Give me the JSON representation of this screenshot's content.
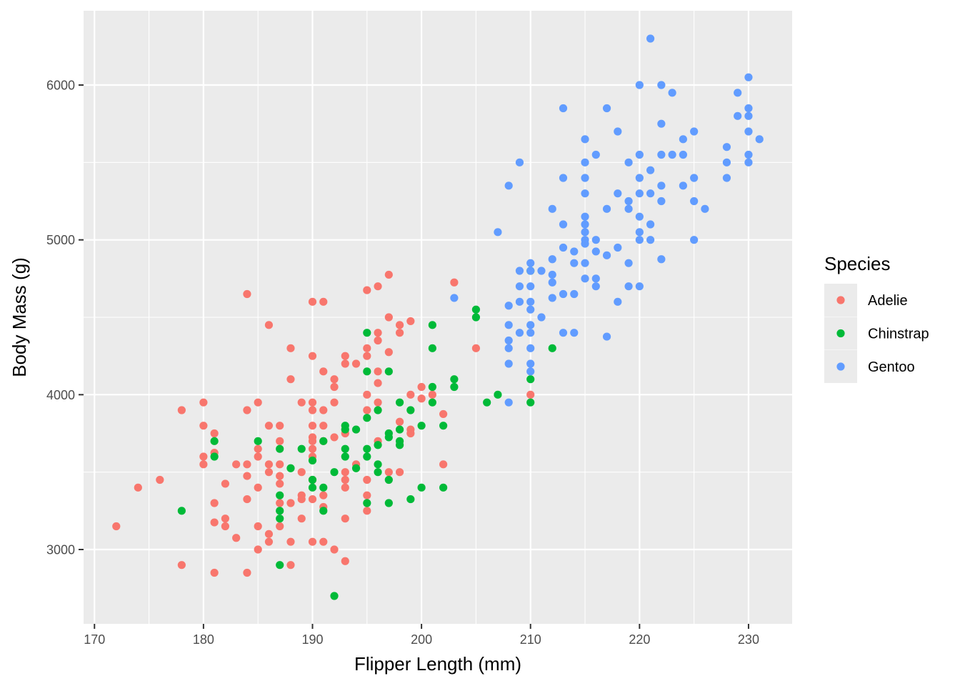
{
  "chart_data": {
    "type": "scatter",
    "title": "",
    "xlabel": "Flipper Length (mm)",
    "ylabel": "Body Mass (g)",
    "xlim": [
      169,
      234
    ],
    "ylim": [
      2520,
      6480
    ],
    "x_ticks": [
      170,
      180,
      190,
      200,
      210,
      220,
      230
    ],
    "y_ticks": [
      3000,
      4000,
      5000,
      6000
    ],
    "x_tick_labels": [
      "170",
      "180",
      "190",
      "200",
      "210",
      "220",
      "230"
    ],
    "y_tick_labels": [
      "3000",
      "4000",
      "5000",
      "6000"
    ],
    "grid": true,
    "panel_background": "#ebebeb",
    "legend": {
      "title": "Species",
      "position": "right",
      "entries": [
        {
          "name": "Adelie",
          "color": "#f8766d"
        },
        {
          "name": "Chinstrap",
          "color": "#00ba38"
        },
        {
          "name": "Gentoo",
          "color": "#619cff"
        }
      ]
    },
    "series": [
      {
        "name": "Adelie",
        "color": "#f8766d",
        "points": [
          [
            172,
            3150
          ],
          [
            174,
            3400
          ],
          [
            176,
            3450
          ],
          [
            178,
            3900
          ],
          [
            178,
            2900
          ],
          [
            180,
            3950
          ],
          [
            180,
            3800
          ],
          [
            180,
            3600
          ],
          [
            180,
            3550
          ],
          [
            181,
            3750
          ],
          [
            181,
            3625
          ],
          [
            181,
            3300
          ],
          [
            181,
            3175
          ],
          [
            181,
            2850
          ],
          [
            182,
            3425
          ],
          [
            182,
            3200
          ],
          [
            182,
            3150
          ],
          [
            183,
            3550
          ],
          [
            183,
            3075
          ],
          [
            184,
            4650
          ],
          [
            184,
            3900
          ],
          [
            184,
            3550
          ],
          [
            184,
            3475
          ],
          [
            184,
            3325
          ],
          [
            184,
            2850
          ],
          [
            185,
            3950
          ],
          [
            185,
            3650
          ],
          [
            185,
            3600
          ],
          [
            185,
            3400
          ],
          [
            185,
            3150
          ],
          [
            185,
            3000
          ],
          [
            186,
            4450
          ],
          [
            186,
            3800
          ],
          [
            186,
            3550
          ],
          [
            186,
            3500
          ],
          [
            186,
            3100
          ],
          [
            186,
            3050
          ],
          [
            187,
            3800
          ],
          [
            187,
            3700
          ],
          [
            187,
            3550
          ],
          [
            187,
            3475
          ],
          [
            187,
            3425
          ],
          [
            187,
            3300
          ],
          [
            187,
            3150
          ],
          [
            188,
            4300
          ],
          [
            188,
            4100
          ],
          [
            188,
            3300
          ],
          [
            188,
            3050
          ],
          [
            188,
            2900
          ],
          [
            189,
            3950
          ],
          [
            189,
            3500
          ],
          [
            189,
            3350
          ],
          [
            189,
            3325
          ],
          [
            189,
            3200
          ],
          [
            190,
            4600
          ],
          [
            190,
            4250
          ],
          [
            190,
            3950
          ],
          [
            190,
            3900
          ],
          [
            190,
            3800
          ],
          [
            190,
            3725
          ],
          [
            190,
            3700
          ],
          [
            190,
            3650
          ],
          [
            190,
            3600
          ],
          [
            190,
            3450
          ],
          [
            190,
            3325
          ],
          [
            190,
            3050
          ],
          [
            191,
            4600
          ],
          [
            191,
            4150
          ],
          [
            191,
            3900
          ],
          [
            191,
            3800
          ],
          [
            191,
            3700
          ],
          [
            191,
            3350
          ],
          [
            191,
            3275
          ],
          [
            191,
            3050
          ],
          [
            192,
            4100
          ],
          [
            192,
            4050
          ],
          [
            192,
            3950
          ],
          [
            192,
            3725
          ],
          [
            192,
            3000
          ],
          [
            193,
            4250
          ],
          [
            193,
            4200
          ],
          [
            193,
            3750
          ],
          [
            193,
            3500
          ],
          [
            193,
            3450
          ],
          [
            193,
            3400
          ],
          [
            193,
            3200
          ],
          [
            193,
            2925
          ],
          [
            194,
            4200
          ],
          [
            194,
            3550
          ],
          [
            195,
            4675
          ],
          [
            195,
            4300
          ],
          [
            195,
            4250
          ],
          [
            195,
            4000
          ],
          [
            195,
            3900
          ],
          [
            195,
            3450
          ],
          [
            195,
            3350
          ],
          [
            195,
            3250
          ],
          [
            196,
            4700
          ],
          [
            196,
            4400
          ],
          [
            196,
            4350
          ],
          [
            196,
            4150
          ],
          [
            196,
            4075
          ],
          [
            196,
            3950
          ],
          [
            196,
            3700
          ],
          [
            197,
            4775
          ],
          [
            197,
            4500
          ],
          [
            197,
            4275
          ],
          [
            197,
            3500
          ],
          [
            198,
            4450
          ],
          [
            198,
            4400
          ],
          [
            198,
            3825
          ],
          [
            198,
            3500
          ],
          [
            199,
            4475
          ],
          [
            199,
            4000
          ],
          [
            199,
            3775
          ],
          [
            199,
            3750
          ],
          [
            200,
            4050
          ],
          [
            200,
            3975
          ],
          [
            201,
            4000
          ],
          [
            202,
            3875
          ],
          [
            202,
            3550
          ],
          [
            203,
            4725
          ],
          [
            205,
            4300
          ],
          [
            210,
            4000
          ]
        ]
      },
      {
        "name": "Chinstrap",
        "color": "#00ba38",
        "points": [
          [
            178,
            3250
          ],
          [
            181,
            3700
          ],
          [
            181,
            3600
          ],
          [
            185,
            3700
          ],
          [
            187,
            3650
          ],
          [
            187,
            3350
          ],
          [
            187,
            3250
          ],
          [
            187,
            3200
          ],
          [
            187,
            2900
          ],
          [
            188,
            3525
          ],
          [
            189,
            3650
          ],
          [
            190,
            3575
          ],
          [
            190,
            3450
          ],
          [
            190,
            3400
          ],
          [
            191,
            3700
          ],
          [
            191,
            3400
          ],
          [
            191,
            3250
          ],
          [
            192,
            3500
          ],
          [
            192,
            2700
          ],
          [
            193,
            3800
          ],
          [
            193,
            3775
          ],
          [
            193,
            3650
          ],
          [
            193,
            3600
          ],
          [
            194,
            3775
          ],
          [
            194,
            3525
          ],
          [
            195,
            4400
          ],
          [
            195,
            4150
          ],
          [
            195,
            3850
          ],
          [
            195,
            3650
          ],
          [
            195,
            3600
          ],
          [
            195,
            3300
          ],
          [
            196,
            3900
          ],
          [
            196,
            3675
          ],
          [
            196,
            3550
          ],
          [
            196,
            3500
          ],
          [
            197,
            4150
          ],
          [
            197,
            3750
          ],
          [
            197,
            3725
          ],
          [
            197,
            3450
          ],
          [
            197,
            3300
          ],
          [
            198,
            3950
          ],
          [
            198,
            3775
          ],
          [
            198,
            3700
          ],
          [
            198,
            3675
          ],
          [
            199,
            3900
          ],
          [
            199,
            3325
          ],
          [
            200,
            3800
          ],
          [
            200,
            3400
          ],
          [
            201,
            4450
          ],
          [
            201,
            4300
          ],
          [
            201,
            4050
          ],
          [
            201,
            3950
          ],
          [
            202,
            3800
          ],
          [
            202,
            3400
          ],
          [
            203,
            4100
          ],
          [
            203,
            4050
          ],
          [
            205,
            4550
          ],
          [
            205,
            4500
          ],
          [
            206,
            3950
          ],
          [
            207,
            4000
          ],
          [
            210,
            4800
          ],
          [
            210,
            4100
          ],
          [
            210,
            3950
          ],
          [
            212,
            4300
          ]
        ]
      },
      {
        "name": "Gentoo",
        "color": "#619cff",
        "points": [
          [
            203,
            4625
          ],
          [
            207,
            5050
          ],
          [
            208,
            5350
          ],
          [
            208,
            4575
          ],
          [
            208,
            4450
          ],
          [
            208,
            4350
          ],
          [
            208,
            4300
          ],
          [
            208,
            4200
          ],
          [
            208,
            3950
          ],
          [
            209,
            5500
          ],
          [
            209,
            4800
          ],
          [
            209,
            4700
          ],
          [
            209,
            4600
          ],
          [
            209,
            4400
          ],
          [
            210,
            4850
          ],
          [
            210,
            4800
          ],
          [
            210,
            4700
          ],
          [
            210,
            4600
          ],
          [
            210,
            4550
          ],
          [
            210,
            4450
          ],
          [
            210,
            4400
          ],
          [
            210,
            4300
          ],
          [
            210,
            4200
          ],
          [
            210,
            4150
          ],
          [
            211,
            4800
          ],
          [
            211,
            4500
          ],
          [
            212,
            5200
          ],
          [
            212,
            4875
          ],
          [
            212,
            4775
          ],
          [
            212,
            4725
          ],
          [
            212,
            4625
          ],
          [
            213,
            5850
          ],
          [
            213,
            5400
          ],
          [
            213,
            5100
          ],
          [
            213,
            4950
          ],
          [
            213,
            4650
          ],
          [
            213,
            4400
          ],
          [
            214,
            4925
          ],
          [
            214,
            4850
          ],
          [
            214,
            4650
          ],
          [
            214,
            4400
          ],
          [
            215,
            5650
          ],
          [
            215,
            5500
          ],
          [
            215,
            5400
          ],
          [
            215,
            5300
          ],
          [
            215,
            5150
          ],
          [
            215,
            5100
          ],
          [
            215,
            5050
          ],
          [
            215,
            5000
          ],
          [
            215,
            4975
          ],
          [
            215,
            4850
          ],
          [
            215,
            4750
          ],
          [
            216,
            5550
          ],
          [
            216,
            5000
          ],
          [
            216,
            4925
          ],
          [
            216,
            4750
          ],
          [
            216,
            4700
          ],
          [
            217,
            5850
          ],
          [
            217,
            5200
          ],
          [
            217,
            4900
          ],
          [
            217,
            4375
          ],
          [
            218,
            5700
          ],
          [
            218,
            5300
          ],
          [
            218,
            4950
          ],
          [
            218,
            4600
          ],
          [
            219,
            5500
          ],
          [
            219,
            5250
          ],
          [
            219,
            5200
          ],
          [
            219,
            4850
          ],
          [
            219,
            4700
          ],
          [
            220,
            6000
          ],
          [
            220,
            5550
          ],
          [
            220,
            5400
          ],
          [
            220,
            5300
          ],
          [
            220,
            5150
          ],
          [
            220,
            5050
          ],
          [
            220,
            5000
          ],
          [
            220,
            4700
          ],
          [
            221,
            6300
          ],
          [
            221,
            5450
          ],
          [
            221,
            5300
          ],
          [
            221,
            5100
          ],
          [
            221,
            5000
          ],
          [
            222,
            6000
          ],
          [
            222,
            5750
          ],
          [
            222,
            5550
          ],
          [
            222,
            5350
          ],
          [
            222,
            5250
          ],
          [
            222,
            4875
          ],
          [
            223,
            5950
          ],
          [
            223,
            5550
          ],
          [
            224,
            5650
          ],
          [
            224,
            5550
          ],
          [
            224,
            5350
          ],
          [
            225,
            5700
          ],
          [
            225,
            5400
          ],
          [
            225,
            5250
          ],
          [
            225,
            5000
          ],
          [
            226,
            5200
          ],
          [
            228,
            5600
          ],
          [
            228,
            5500
          ],
          [
            228,
            5400
          ],
          [
            229,
            5950
          ],
          [
            229,
            5800
          ],
          [
            230,
            6050
          ],
          [
            230,
            5850
          ],
          [
            230,
            5800
          ],
          [
            230,
            5700
          ],
          [
            230,
            5550
          ],
          [
            230,
            5500
          ],
          [
            231,
            5650
          ]
        ]
      }
    ]
  }
}
